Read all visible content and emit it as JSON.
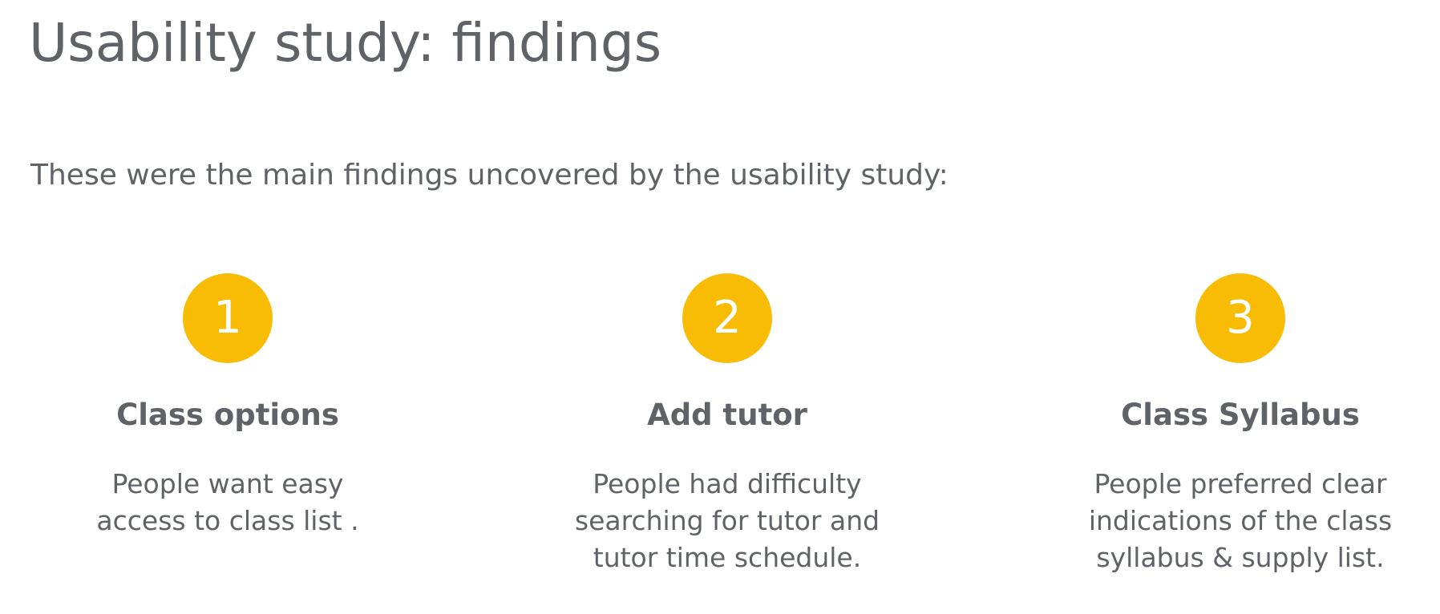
{
  "slide": {
    "title": "Usability study: findings",
    "intro": "These were the main findings uncovered by the usability study:",
    "accent_color": "#f8bc05",
    "findings": [
      {
        "number": "1",
        "heading": "Class options",
        "description": "People want easy access to class list ."
      },
      {
        "number": "2",
        "heading": "Add tutor",
        "description": "People had difficulty searching for tutor and tutor time schedule."
      },
      {
        "number": "3",
        "heading": "Class Syllabus",
        "description": "People preferred clear indications of the class syllabus & supply list."
      }
    ]
  }
}
